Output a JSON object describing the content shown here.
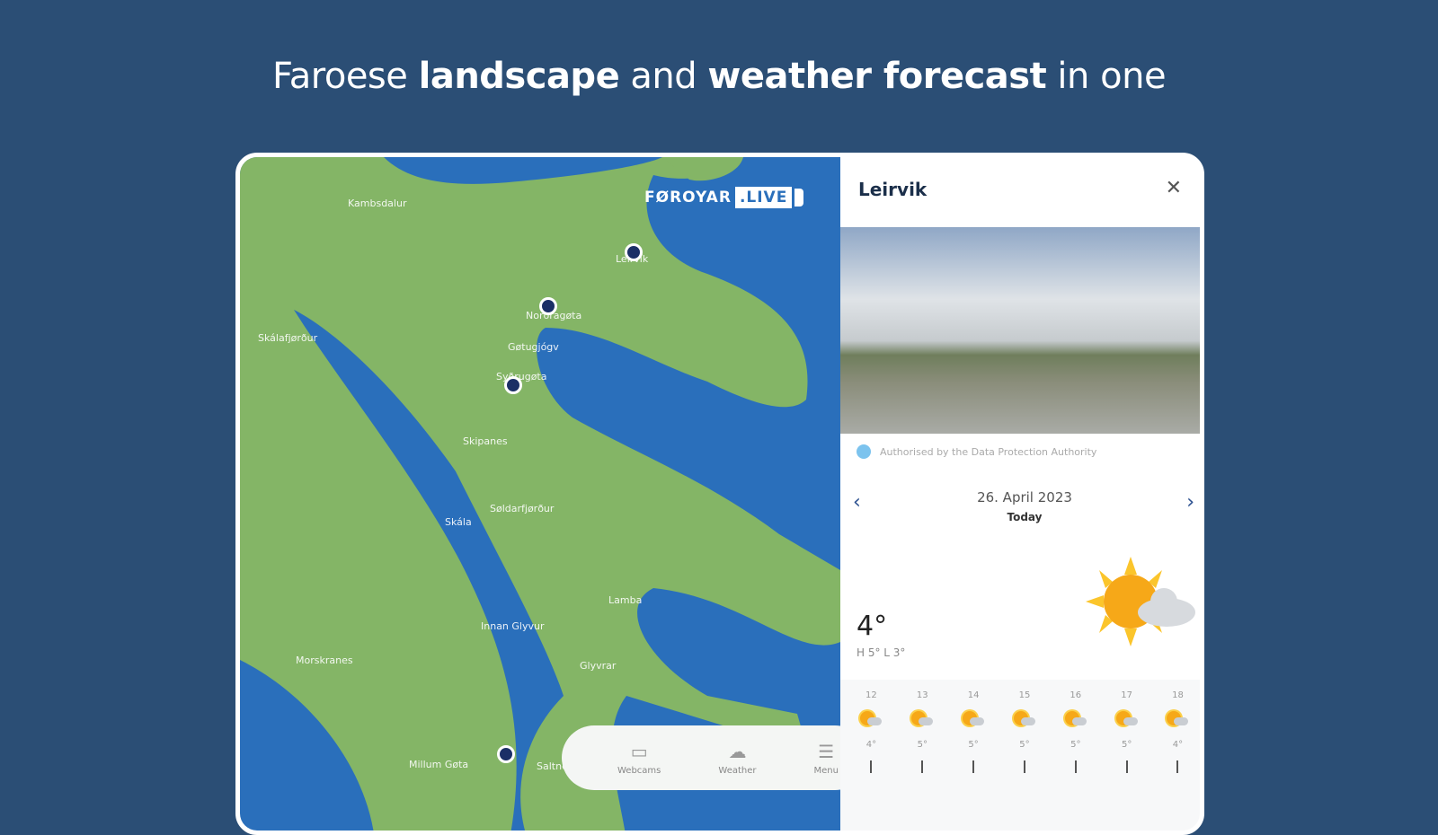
{
  "headline": {
    "pre": "Faroese ",
    "b1": "landscape",
    "mid": " and ",
    "b2": "weather forecast",
    "post": " in one"
  },
  "map": {
    "logo_text": "FØROYAR",
    "logo_live": ".LIVE",
    "colors": {
      "water": "#2a6fbb",
      "land": "#84b566",
      "pin": "#1b2f66"
    },
    "labels": [
      "Kambsdalur",
      "Leirvík",
      "Norðragøta",
      "Gøtugjógv",
      "Syðrugøta",
      "Skálafjørður",
      "Skipanes",
      "Søldarfjørður",
      "Skála",
      "Lamba",
      "Innan Glyvur",
      "Glyvrar",
      "Morskranes",
      "Millum Gøta",
      "Saltnes"
    ]
  },
  "nav": {
    "items": [
      {
        "label": "Webcams",
        "icon": "webcam-icon"
      },
      {
        "label": "Weather",
        "icon": "weather-icon"
      },
      {
        "label": "Menu",
        "icon": "menu-icon"
      }
    ]
  },
  "panel": {
    "title": "Leirvik",
    "close": "✕",
    "auth": "Authorised by the Data Protection Authority",
    "date": "26. April 2023",
    "day": "Today",
    "prev": "‹",
    "next": "›",
    "temp": "4°",
    "hilo": "H 5°  L 3°",
    "hourly": [
      {
        "h": "12",
        "t": "4°",
        "icon": "partly-cloudy"
      },
      {
        "h": "13",
        "t": "5°",
        "icon": "partly-cloudy"
      },
      {
        "h": "14",
        "t": "5°",
        "icon": "partly-cloudy"
      },
      {
        "h": "15",
        "t": "5°",
        "icon": "partly-cloudy"
      },
      {
        "h": "16",
        "t": "5°",
        "icon": "partly-cloudy"
      },
      {
        "h": "17",
        "t": "5°",
        "icon": "cloudy-rain"
      },
      {
        "h": "18",
        "t": "4°",
        "icon": "partly-cloudy"
      }
    ]
  }
}
